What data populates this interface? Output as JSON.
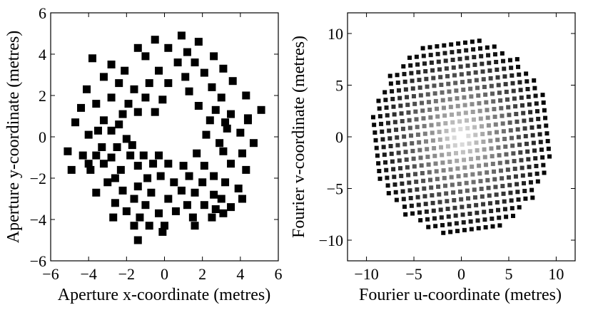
{
  "chart_data": [
    {
      "type": "scatter",
      "xlabel": "Aperture x-coordinate (metres)",
      "ylabel": "Aperture y-coordinate (metres)",
      "xlim": [
        -6,
        6
      ],
      "ylim": [
        -6,
        6
      ],
      "xticks": [
        "−6",
        "−4",
        "−2",
        "0",
        "2",
        "4",
        "6"
      ],
      "yticks": [
        "6",
        "4",
        "2",
        "0",
        "−2",
        "−4",
        "−6"
      ],
      "marker": "square",
      "marker_color": "#000000",
      "points": [
        [
          0.9,
          4.9
        ],
        [
          1.8,
          4.6
        ],
        [
          -0.5,
          4.7
        ],
        [
          -1.4,
          4.3
        ],
        [
          0.2,
          4.3
        ],
        [
          1.2,
          4.1
        ],
        [
          -3.8,
          3.8
        ],
        [
          -2.8,
          3.5
        ],
        [
          -2.1,
          3.2
        ],
        [
          -1.0,
          3.9
        ],
        [
          0.7,
          3.6
        ],
        [
          1.6,
          3.6
        ],
        [
          2.6,
          3.9
        ],
        [
          -3.2,
          2.9
        ],
        [
          -0.3,
          3.2
        ],
        [
          2.1,
          3.1
        ],
        [
          3.1,
          3.3
        ],
        [
          -4.1,
          2.3
        ],
        [
          -2.4,
          2.6
        ],
        [
          -1.6,
          2.3
        ],
        [
          -0.8,
          2.6
        ],
        [
          0.2,
          2.6
        ],
        [
          1.1,
          2.9
        ],
        [
          2.5,
          2.4
        ],
        [
          3.6,
          2.7
        ],
        [
          -3.6,
          1.6
        ],
        [
          -2.8,
          1.9
        ],
        [
          -1.9,
          1.6
        ],
        [
          -1.0,
          1.9
        ],
        [
          -0.1,
          1.8
        ],
        [
          1.3,
          2.2
        ],
        [
          3.0,
          1.9
        ],
        [
          4.3,
          2.0
        ],
        [
          -4.4,
          1.4
        ],
        [
          -2.2,
          1.1
        ],
        [
          -1.4,
          1.2
        ],
        [
          -0.5,
          1.2
        ],
        [
          1.8,
          1.5
        ],
        [
          2.7,
          1.3
        ],
        [
          3.5,
          1.1
        ],
        [
          -4.7,
          0.7
        ],
        [
          -3.2,
          0.8
        ],
        [
          -2.4,
          0.6
        ],
        [
          2.4,
          0.8
        ],
        [
          3.2,
          0.7
        ],
        [
          4.4,
          0.8
        ],
        [
          -4.0,
          0.1
        ],
        [
          -3.5,
          0.3
        ],
        [
          -2.8,
          0.3
        ],
        [
          -2.0,
          -0.1
        ],
        [
          2.2,
          0.1
        ],
        [
          3.3,
          0.4
        ],
        [
          4.0,
          0.2
        ],
        [
          -3.3,
          -0.5
        ],
        [
          -2.5,
          -0.5
        ],
        [
          -1.7,
          -0.4
        ],
        [
          2.9,
          -0.3
        ],
        [
          4.7,
          -0.3
        ],
        [
          5.1,
          1.3
        ],
        [
          4.4,
          0.9
        ],
        [
          -5.1,
          -0.7
        ],
        [
          -4.3,
          -0.9
        ],
        [
          -3.6,
          -0.9
        ],
        [
          -2.8,
          -1.0
        ],
        [
          -1.8,
          -0.9
        ],
        [
          -1.1,
          -0.9
        ],
        [
          -0.3,
          -0.9
        ],
        [
          1.7,
          -0.8
        ],
        [
          3.1,
          -0.7
        ],
        [
          4.1,
          -0.8
        ],
        [
          -4.9,
          -1.6
        ],
        [
          -3.9,
          -1.6
        ],
        [
          -3.2,
          -1.3
        ],
        [
          -1.4,
          -1.4
        ],
        [
          -0.6,
          -1.3
        ],
        [
          0.2,
          -1.3
        ],
        [
          1.0,
          -1.4
        ],
        [
          2.1,
          -1.4
        ],
        [
          3.5,
          -1.3
        ],
        [
          -4.0,
          -1.3
        ],
        [
          -2.3,
          -1.6
        ],
        [
          1.3,
          -1.9
        ],
        [
          2.6,
          -1.9
        ],
        [
          4.3,
          -1.6
        ],
        [
          -3.0,
          -2.2
        ],
        [
          -2.6,
          -2.0
        ],
        [
          -0.9,
          -2.0
        ],
        [
          -0.2,
          -1.9
        ],
        [
          0.5,
          -2.2
        ],
        [
          2.0,
          -2.2
        ],
        [
          3.2,
          -2.2
        ],
        [
          -3.6,
          -2.7
        ],
        [
          -2.2,
          -2.6
        ],
        [
          -1.4,
          -2.4
        ],
        [
          -0.7,
          -2.7
        ],
        [
          0.9,
          -2.6
        ],
        [
          1.6,
          -2.7
        ],
        [
          2.6,
          -2.8
        ],
        [
          3.9,
          -2.5
        ],
        [
          -2.6,
          -3.2
        ],
        [
          -1.6,
          -3.0
        ],
        [
          0.2,
          -3.0
        ],
        [
          1.2,
          -3.3
        ],
        [
          3.0,
          -3.0
        ],
        [
          4.1,
          -3.0
        ],
        [
          -2.0,
          -3.6
        ],
        [
          -1.0,
          -3.3
        ],
        [
          0.6,
          -3.6
        ],
        [
          2.1,
          -3.3
        ],
        [
          3.5,
          -3.4
        ],
        [
          -2.7,
          -3.9
        ],
        [
          -1.3,
          -3.9
        ],
        [
          -0.3,
          -3.7
        ],
        [
          1.5,
          -3.9
        ],
        [
          2.7,
          -3.5
        ],
        [
          3.1,
          -3.7
        ],
        [
          -1.6,
          -4.3
        ],
        [
          0.0,
          -4.3
        ],
        [
          1.6,
          -4.3
        ],
        [
          2.5,
          -3.9
        ],
        [
          -0.8,
          -4.3
        ],
        [
          -0.1,
          -4.6
        ],
        [
          -1.4,
          -5.0
        ]
      ]
    },
    {
      "type": "scatter",
      "xlabel": "Fourier u-coordinate (metres)",
      "ylabel": "Fourier v-coordinate (metres)",
      "xlim": [
        -12,
        12
      ],
      "ylim": [
        -12,
        12
      ],
      "xticks": [
        "−10",
        "−5",
        "0",
        "5",
        "10"
      ],
      "yticks": [
        "10",
        "5",
        "0",
        "−5",
        "−10"
      ],
      "marker": "square",
      "color_scale": "grayscale: white at origin, black at outer radius",
      "disk_radius": 9.6,
      "grid_spacing": 0.75
    }
  ]
}
